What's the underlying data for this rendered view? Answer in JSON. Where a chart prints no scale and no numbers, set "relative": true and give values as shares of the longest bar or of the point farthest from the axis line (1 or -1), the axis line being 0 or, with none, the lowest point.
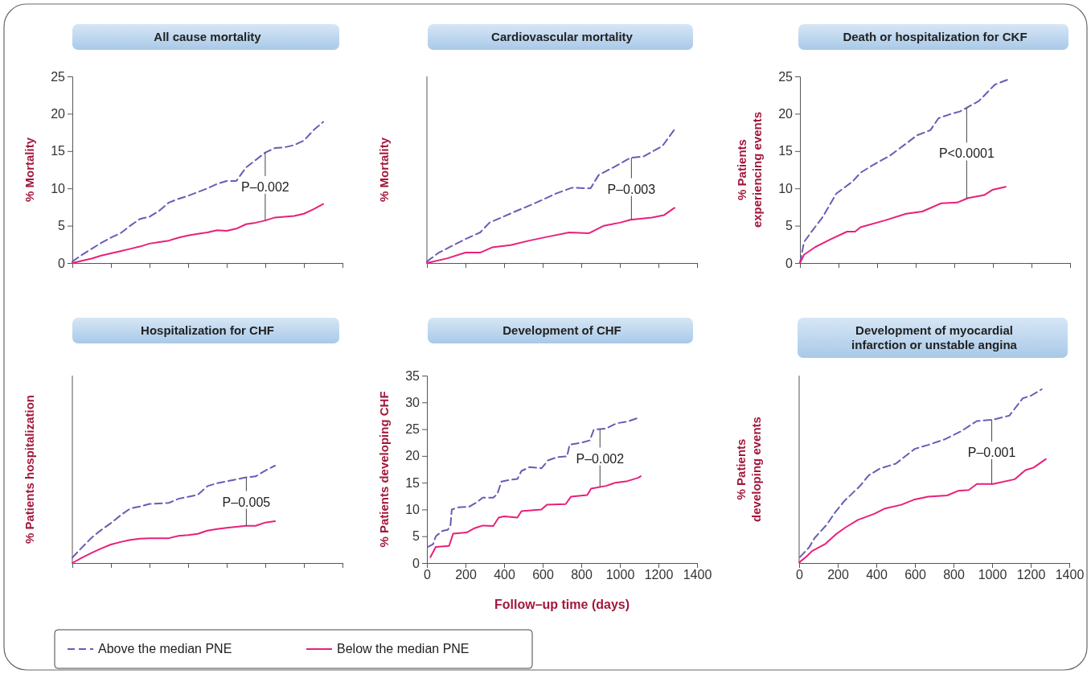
{
  "chart_data": [
    {
      "type": "line",
      "title": "All cause mortality",
      "ylabel": "% Mortality",
      "categories": [
        null,
        null,
        null,
        null,
        null,
        null,
        null,
        null,
        null,
        null,
        null,
        null,
        null,
        null,
        null,
        null,
        null,
        null,
        null,
        null,
        null,
        null,
        null,
        null,
        null,
        null,
        null,
        null,
        null
      ],
      "ylim": [
        0,
        25
      ],
      "yticks": [
        0,
        5,
        10,
        15,
        20,
        25
      ],
      "tick_labels": "y",
      "series": [
        {
          "color": "#6b5bb5",
          "line_style": "dashed",
          "values": [
            0.2,
            1.1,
            1.9,
            2.7,
            3.4,
            4.0,
            5.0,
            5.9,
            6.2,
            7.0,
            8.1,
            8.6,
            9.0,
            9.5,
            10.0,
            10.6,
            11.0,
            11.0,
            12.8,
            13.8,
            14.8,
            15.4,
            15.5,
            15.8,
            16.4,
            17.8,
            18.9,
            null,
            null
          ]
        },
        {
          "color": "#e8207a",
          "line_style": "solid",
          "values": [
            0,
            0.3,
            0.6,
            1.0,
            1.3,
            1.6,
            1.9,
            2.2,
            2.6,
            2.8,
            3.0,
            3.4,
            3.7,
            3.9,
            4.1,
            4.4,
            4.3,
            4.6,
            5.2,
            5.4,
            5.7,
            6.1,
            6.2,
            6.3,
            6.6,
            7.2,
            7.9,
            null,
            null
          ]
        }
      ],
      "annotations": [
        "P–0.002"
      ]
    },
    {
      "type": "line",
      "title": "Cardiovascular mortality",
      "ylabel": "% Mortality",
      "xlim": [
        0,
        1400
      ],
      "xticks": [
        0,
        200,
        400,
        600,
        800,
        1000,
        1200,
        1400
      ],
      "relative": true,
      "tick_labels": false,
      "series": [
        {
          "color": "#6b5bb5",
          "line_style": "dashed",
          "x": [
            0,
            62,
            200,
            276,
            324,
            448,
            559,
            669,
            752,
            848,
            890,
            972,
            1055,
            1124,
            1221,
            1283
          ],
          "values": [
            0.011,
            0.078,
            0.179,
            0.229,
            0.302,
            0.38,
            0.447,
            0.52,
            0.564,
            0.559,
            0.659,
            0.721,
            0.788,
            0.799,
            0.877,
            1
          ]
        },
        {
          "color": "#e8207a",
          "line_style": "solid",
          "x": [
            0,
            103,
            200,
            276,
            338,
            434,
            531,
            641,
            738,
            841,
            917,
            1000,
            1055,
            1166,
            1228,
            1283
          ],
          "values": [
            0,
            0.034,
            0.078,
            0.078,
            0.117,
            0.134,
            0.168,
            0.201,
            0.229,
            0.223,
            0.279,
            0.302,
            0.324,
            0.341,
            0.358,
            0.413
          ]
        }
      ],
      "annotations": [
        "P–0.003"
      ]
    },
    {
      "type": "line",
      "title": "Death or hospitalization for CKF",
      "ylabel": "% Patients experiencing events",
      "xlim": [
        0,
        1400
      ],
      "xticks": [
        0,
        200,
        400,
        600,
        800,
        1000,
        1200,
        1400
      ],
      "ylim": [
        0,
        25
      ],
      "yticks": [
        0,
        5,
        10,
        15,
        20,
        25
      ],
      "tick_labels": "y",
      "series": [
        {
          "color": "#6b5bb5",
          "line_style": "dashed",
          "x": [
            0,
            21,
            63,
            119,
            188,
            230,
            272,
            314,
            383,
            467,
            550,
            606,
            676,
            718,
            774,
            829,
            927,
            1010,
            1080
          ],
          "values": [
            0,
            2.8,
            4.3,
            6.2,
            9.3,
            10.1,
            10.9,
            12.1,
            13.2,
            14.4,
            16,
            17.1,
            17.8,
            19.4,
            19.9,
            20.3,
            21.7,
            23.9,
            24.6
          ]
        },
        {
          "color": "#e8207a",
          "line_style": "solid",
          "x": [
            0,
            21,
            77,
            160,
            244,
            286,
            314,
            439,
            550,
            634,
            732,
            815,
            871,
            955,
            997,
            1066
          ],
          "values": [
            0,
            1.1,
            2.1,
            3.2,
            4.2,
            4.2,
            4.8,
            5.7,
            6.6,
            6.9,
            8,
            8.1,
            8.7,
            9.1,
            9.8,
            10.2
          ]
        }
      ],
      "annotations": [
        {
          "text": "P<0.0001",
          "x": 864,
          "y": 20.8
        }
      ]
    },
    {
      "type": "line",
      "title": "Hospitalization for CHF",
      "ylabel": "% Patients hospitalization",
      "categories": [
        null,
        null,
        null,
        null,
        null,
        null,
        null,
        null,
        null,
        null,
        null,
        null,
        null,
        null,
        null,
        null,
        null,
        null,
        null,
        null,
        null,
        null,
        null,
        null,
        null,
        null,
        null,
        null,
        null
      ],
      "relative": true,
      "tick_labels": false,
      "series": [
        {
          "color": "#6b5bb5",
          "line_style": "dashed",
          "values": [
            0.055,
            0.16,
            0.26,
            0.34,
            0.41,
            0.49,
            0.56,
            0.58,
            0.607,
            0.612,
            0.618,
            0.66,
            0.68,
            0.7,
            0.79,
            0.82,
            0.84,
            0.86,
            0.88,
            0.89,
            0.95,
            1,
            null,
            null,
            null,
            null,
            null,
            null,
            null
          ]
        },
        {
          "color": "#e8207a",
          "line_style": "solid",
          "values": [
            0,
            0.055,
            0.104,
            0.15,
            0.19,
            0.216,
            0.238,
            0.25,
            0.255,
            0.255,
            0.255,
            0.279,
            0.287,
            0.3,
            0.333,
            0.35,
            0.362,
            0.372,
            0.382,
            0.382,
            0.416,
            0.429,
            null,
            null,
            null,
            null,
            null,
            null,
            null
          ]
        }
      ],
      "annotations": [
        "P–0.005"
      ]
    },
    {
      "type": "line",
      "title": "Development of CHF",
      "ylabel": "% Patients developing CHF",
      "xlabel": "Follow–up time (days)",
      "xlim": [
        0,
        1400
      ],
      "xticks": [
        0,
        200,
        400,
        600,
        800,
        1000,
        1200,
        1400
      ],
      "ylim": [
        0,
        35
      ],
      "yticks": [
        0,
        5,
        10,
        15,
        20,
        25,
        30,
        35
      ],
      "legend": "bottom",
      "series": [
        {
          "name": "Above the median PNE",
          "color": "#6b5bb5",
          "line_style": "dashed",
          "x": [
            4,
            32,
            46,
            81,
            108,
            122,
            129,
            164,
            219,
            261,
            289,
            344,
            365,
            386,
            428,
            469,
            490,
            532,
            594,
            629,
            678,
            726,
            740,
            803,
            844,
            865,
            928,
            983,
            1039,
            1094
          ],
          "values": [
            3,
            3.5,
            5,
            6,
            6.2,
            7,
            10,
            10.4,
            10.5,
            11.4,
            12.2,
            12.2,
            12.9,
            15.2,
            15.5,
            15.7,
            17.2,
            17.9,
            17.7,
            19.2,
            19.8,
            19.9,
            22.1,
            22.5,
            22.9,
            24.9,
            25.1,
            26.1,
            26.4,
            27.1
          ]
        },
        {
          "name": "Below the median PNE",
          "color": "#e8207a",
          "line_style": "solid",
          "x": [
            18,
            46,
            115,
            136,
            206,
            247,
            289,
            344,
            372,
            400,
            469,
            490,
            594,
            622,
            719,
            747,
            831,
            851,
            928,
            976,
            1039,
            1094,
            1108
          ],
          "values": [
            1.1,
            3,
            3.2,
            5.5,
            5.7,
            6.5,
            7,
            6.9,
            8.5,
            8.7,
            8.5,
            9.7,
            10,
            10.9,
            11,
            12.4,
            12.7,
            13.9,
            14.4,
            15,
            15.3,
            15.9,
            16.2
          ]
        }
      ],
      "annotations": [
        {
          "text": "P–0.002",
          "x": 897,
          "y": 25
        }
      ]
    },
    {
      "type": "line",
      "title": "Development of myocardial infarction or unstable angina",
      "ylabel": "% Patients developing events",
      "xlim": [
        0,
        1400
      ],
      "xticks": [
        0,
        200,
        400,
        600,
        800,
        1000,
        1200,
        1400
      ],
      "relative": true,
      "tick_labels": "x",
      "series": [
        {
          "color": "#6b5bb5",
          "line_style": "dashed",
          "x": [
            4,
            53,
            81,
            144,
            186,
            235,
            315,
            361,
            417,
            501,
            599,
            669,
            753,
            837,
            921,
            1005,
            1089,
            1159,
            1201,
            1257
          ],
          "values": [
            0.034,
            0.092,
            0.145,
            0.222,
            0.291,
            0.358,
            0.443,
            0.505,
            0.543,
            0.572,
            0.657,
            0.68,
            0.711,
            0.757,
            0.817,
            0.825,
            0.848,
            0.948,
            0.963,
            1
          ]
        },
        {
          "color": "#e8207a",
          "line_style": "solid",
          "x": [
            0,
            39,
            67,
            137,
            193,
            242,
            305,
            389,
            445,
            529,
            599,
            669,
            767,
            823,
            879,
            921,
            1005,
            1117,
            1173,
            1215,
            1278
          ],
          "values": [
            0.003,
            0.038,
            0.069,
            0.111,
            0.168,
            0.206,
            0.248,
            0.283,
            0.314,
            0.335,
            0.366,
            0.382,
            0.389,
            0.415,
            0.42,
            0.455,
            0.455,
            0.482,
            0.535,
            0.549,
            0.598
          ]
        }
      ],
      "annotations": [
        "P–0.001"
      ]
    }
  ]
}
